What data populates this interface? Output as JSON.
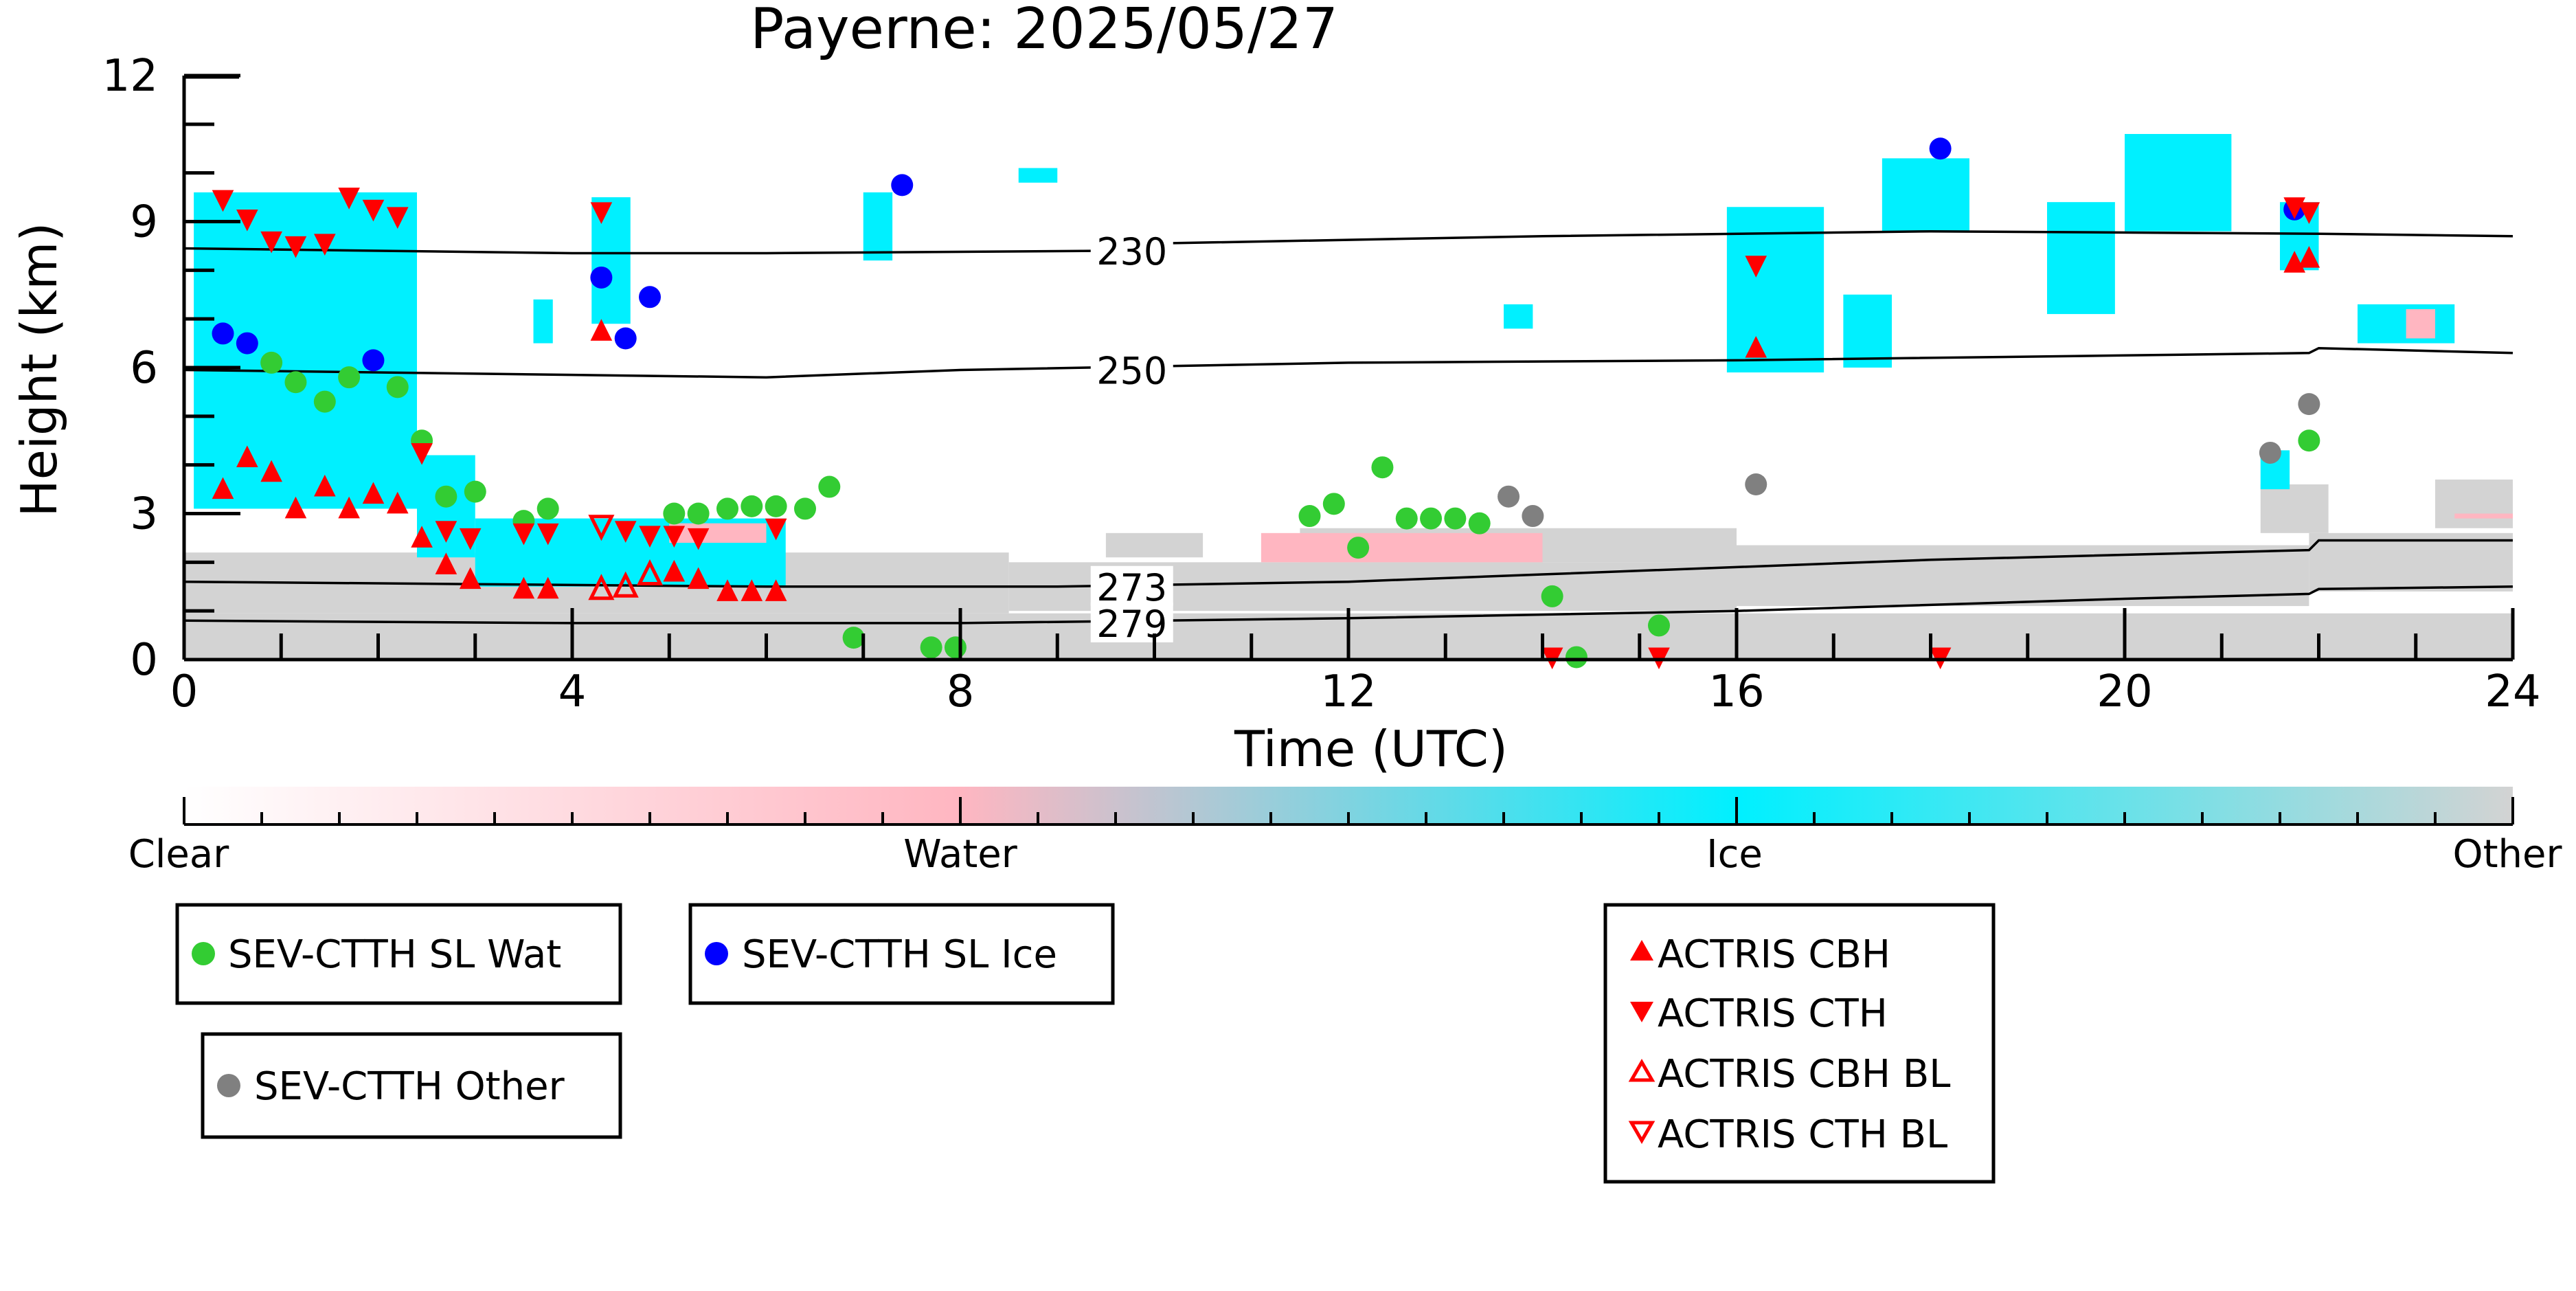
{
  "chart_data": {
    "type": "scatter",
    "title": "Payerne: 2025/05/27",
    "xlabel": "Time (UTC)",
    "ylabel": "Height (km)",
    "xlim": [
      0,
      24
    ],
    "ylim": [
      0,
      12
    ],
    "x_ticks": [
      "0",
      "4",
      "8",
      "12",
      "16",
      "20",
      "24"
    ],
    "y_ticks": [
      "0",
      "3",
      "6",
      "9",
      "12"
    ],
    "grid": false,
    "background": "cloud phase classification curtain (Clear / Water / Ice / Other)",
    "colorbar": {
      "labels": [
        "Clear",
        "Water",
        "Ice",
        "Other"
      ],
      "colors": [
        "#ffffff",
        "#ffb6c1",
        "#00f0ff",
        "#d3d3d3"
      ]
    },
    "isotherms": [
      {
        "label": "230",
        "points": [
          [
            0,
            8.45
          ],
          [
            2,
            8.4
          ],
          [
            4,
            8.35
          ],
          [
            6,
            8.35
          ],
          [
            9.5,
            8.4
          ],
          [
            10,
            8.55
          ],
          [
            14,
            8.7
          ],
          [
            18,
            8.8
          ],
          [
            22,
            8.75
          ],
          [
            24,
            8.7
          ]
        ]
      },
      {
        "label": "250",
        "points": [
          [
            0,
            5.95
          ],
          [
            4,
            5.85
          ],
          [
            6,
            5.8
          ],
          [
            8,
            5.95
          ],
          [
            12,
            6.1
          ],
          [
            16,
            6.15
          ],
          [
            20,
            6.25
          ],
          [
            21.9,
            6.3
          ],
          [
            22,
            6.4
          ],
          [
            24,
            6.3
          ]
        ]
      },
      {
        "label": "273",
        "points": [
          [
            0,
            1.6
          ],
          [
            3,
            1.55
          ],
          [
            6,
            1.5
          ],
          [
            9,
            1.5
          ],
          [
            12,
            1.6
          ],
          [
            14,
            1.75
          ],
          [
            16,
            1.9
          ],
          [
            18,
            2.05
          ],
          [
            21.9,
            2.25
          ],
          [
            22,
            2.45
          ],
          [
            24,
            2.45
          ]
        ]
      },
      {
        "label": "279",
        "points": [
          [
            0,
            0.8
          ],
          [
            4,
            0.75
          ],
          [
            8,
            0.75
          ],
          [
            12,
            0.85
          ],
          [
            16,
            1.0
          ],
          [
            20,
            1.25
          ],
          [
            21.9,
            1.35
          ],
          [
            22,
            1.45
          ],
          [
            24,
            1.5
          ]
        ]
      }
    ],
    "series": [
      {
        "name": "SEV-CTTH SL Wat",
        "marker": "circle",
        "color": "#33cc33",
        "points": [
          [
            0.9,
            6.1
          ],
          [
            1.15,
            5.7
          ],
          [
            1.45,
            5.3
          ],
          [
            1.7,
            5.8
          ],
          [
            2.2,
            5.6
          ],
          [
            2.45,
            4.5
          ],
          [
            2.7,
            3.35
          ],
          [
            3.0,
            3.45
          ],
          [
            3.5,
            2.85
          ],
          [
            3.75,
            3.1
          ],
          [
            5.05,
            3.0
          ],
          [
            5.3,
            3.0
          ],
          [
            5.6,
            3.1
          ],
          [
            5.85,
            3.15
          ],
          [
            6.1,
            3.15
          ],
          [
            6.4,
            3.1
          ],
          [
            6.65,
            3.55
          ],
          [
            6.9,
            0.45
          ],
          [
            7.7,
            0.25
          ],
          [
            7.95,
            0.25
          ],
          [
            11.6,
            2.95
          ],
          [
            11.85,
            3.2
          ],
          [
            12.1,
            2.3
          ],
          [
            12.35,
            3.95
          ],
          [
            12.6,
            2.9
          ],
          [
            12.85,
            2.9
          ],
          [
            13.1,
            2.9
          ],
          [
            13.35,
            2.8
          ],
          [
            14.1,
            1.3
          ],
          [
            14.35,
            0.05
          ],
          [
            15.2,
            0.7
          ],
          [
            21.9,
            4.5
          ]
        ]
      },
      {
        "name": "SEV-CTTH SL Ice",
        "marker": "circle",
        "color": "#0000ff",
        "points": [
          [
            0.4,
            6.7
          ],
          [
            0.65,
            6.5
          ],
          [
            1.95,
            6.15
          ],
          [
            4.3,
            7.85
          ],
          [
            4.55,
            6.6
          ],
          [
            4.8,
            7.45
          ],
          [
            7.4,
            9.75
          ],
          [
            18.1,
            10.5
          ],
          [
            21.75,
            9.25
          ]
        ]
      },
      {
        "name": "SEV-CTTH Other",
        "marker": "circle",
        "color": "#808080",
        "points": [
          [
            13.65,
            3.35
          ],
          [
            13.9,
            2.95
          ],
          [
            16.2,
            3.6
          ],
          [
            21.5,
            4.25
          ],
          [
            21.9,
            5.25
          ]
        ]
      },
      {
        "name": "ACTRIS CBH",
        "marker": "triangle-up",
        "color": "#ff0000",
        "points": [
          [
            0.4,
            3.5
          ],
          [
            0.65,
            4.15
          ],
          [
            0.9,
            3.85
          ],
          [
            1.15,
            3.1
          ],
          [
            1.45,
            3.55
          ],
          [
            1.7,
            3.1
          ],
          [
            1.95,
            3.4
          ],
          [
            2.2,
            3.2
          ],
          [
            2.45,
            2.5
          ],
          [
            2.7,
            1.95
          ],
          [
            2.95,
            1.65
          ],
          [
            3.5,
            1.45
          ],
          [
            3.75,
            1.45
          ],
          [
            4.3,
            6.75
          ],
          [
            5.05,
            1.8
          ],
          [
            5.3,
            1.65
          ],
          [
            5.6,
            1.4
          ],
          [
            5.85,
            1.4
          ],
          [
            6.1,
            1.4
          ],
          [
            16.2,
            6.4
          ],
          [
            21.75,
            8.15
          ],
          [
            21.9,
            8.25
          ]
        ]
      },
      {
        "name": "ACTRIS CTH",
        "marker": "triangle-down",
        "color": "#ff0000",
        "points": [
          [
            0.4,
            9.45
          ],
          [
            0.65,
            9.05
          ],
          [
            0.9,
            8.6
          ],
          [
            1.15,
            8.5
          ],
          [
            1.45,
            8.55
          ],
          [
            1.7,
            9.5
          ],
          [
            1.95,
            9.25
          ],
          [
            2.2,
            9.1
          ],
          [
            2.45,
            4.25
          ],
          [
            2.7,
            2.65
          ],
          [
            2.95,
            2.5
          ],
          [
            3.5,
            2.6
          ],
          [
            3.75,
            2.6
          ],
          [
            4.3,
            9.2
          ],
          [
            4.55,
            2.65
          ],
          [
            4.8,
            2.55
          ],
          [
            5.05,
            2.55
          ],
          [
            5.3,
            2.5
          ],
          [
            6.1,
            2.7
          ],
          [
            14.1,
            0.05
          ],
          [
            15.2,
            0.05
          ],
          [
            16.2,
            8.1
          ],
          [
            18.1,
            0.05
          ],
          [
            21.75,
            9.3
          ],
          [
            21.9,
            9.2
          ]
        ]
      },
      {
        "name": "ACTRIS CBH BL",
        "marker": "triangle-up-open",
        "color": "#ff0000",
        "points": [
          [
            4.3,
            1.45
          ],
          [
            4.55,
            1.5
          ],
          [
            4.8,
            1.75
          ]
        ]
      },
      {
        "name": "ACTRIS CTH BL",
        "marker": "triangle-down-open",
        "color": "#ff0000",
        "points": [
          [
            4.3,
            2.75
          ]
        ]
      }
    ]
  }
}
